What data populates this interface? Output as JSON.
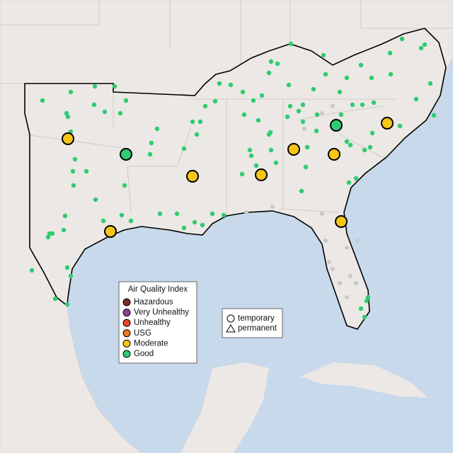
{
  "legend": {
    "title": "Air Quality Index",
    "items": [
      {
        "label": "Hazardous",
        "color": "#7e2a2a"
      },
      {
        "label": "Very Unhealthy",
        "color": "#8f3f97"
      },
      {
        "label": "Unhealthy",
        "color": "#e8452c"
      },
      {
        "label": "USG",
        "color": "#e87722"
      },
      {
        "label": "Moderate",
        "color": "#f5c518"
      },
      {
        "label": "Good",
        "color": "#2ecc71"
      }
    ]
  },
  "shape_legend": {
    "items": [
      "temporary",
      "permanent"
    ]
  }
}
